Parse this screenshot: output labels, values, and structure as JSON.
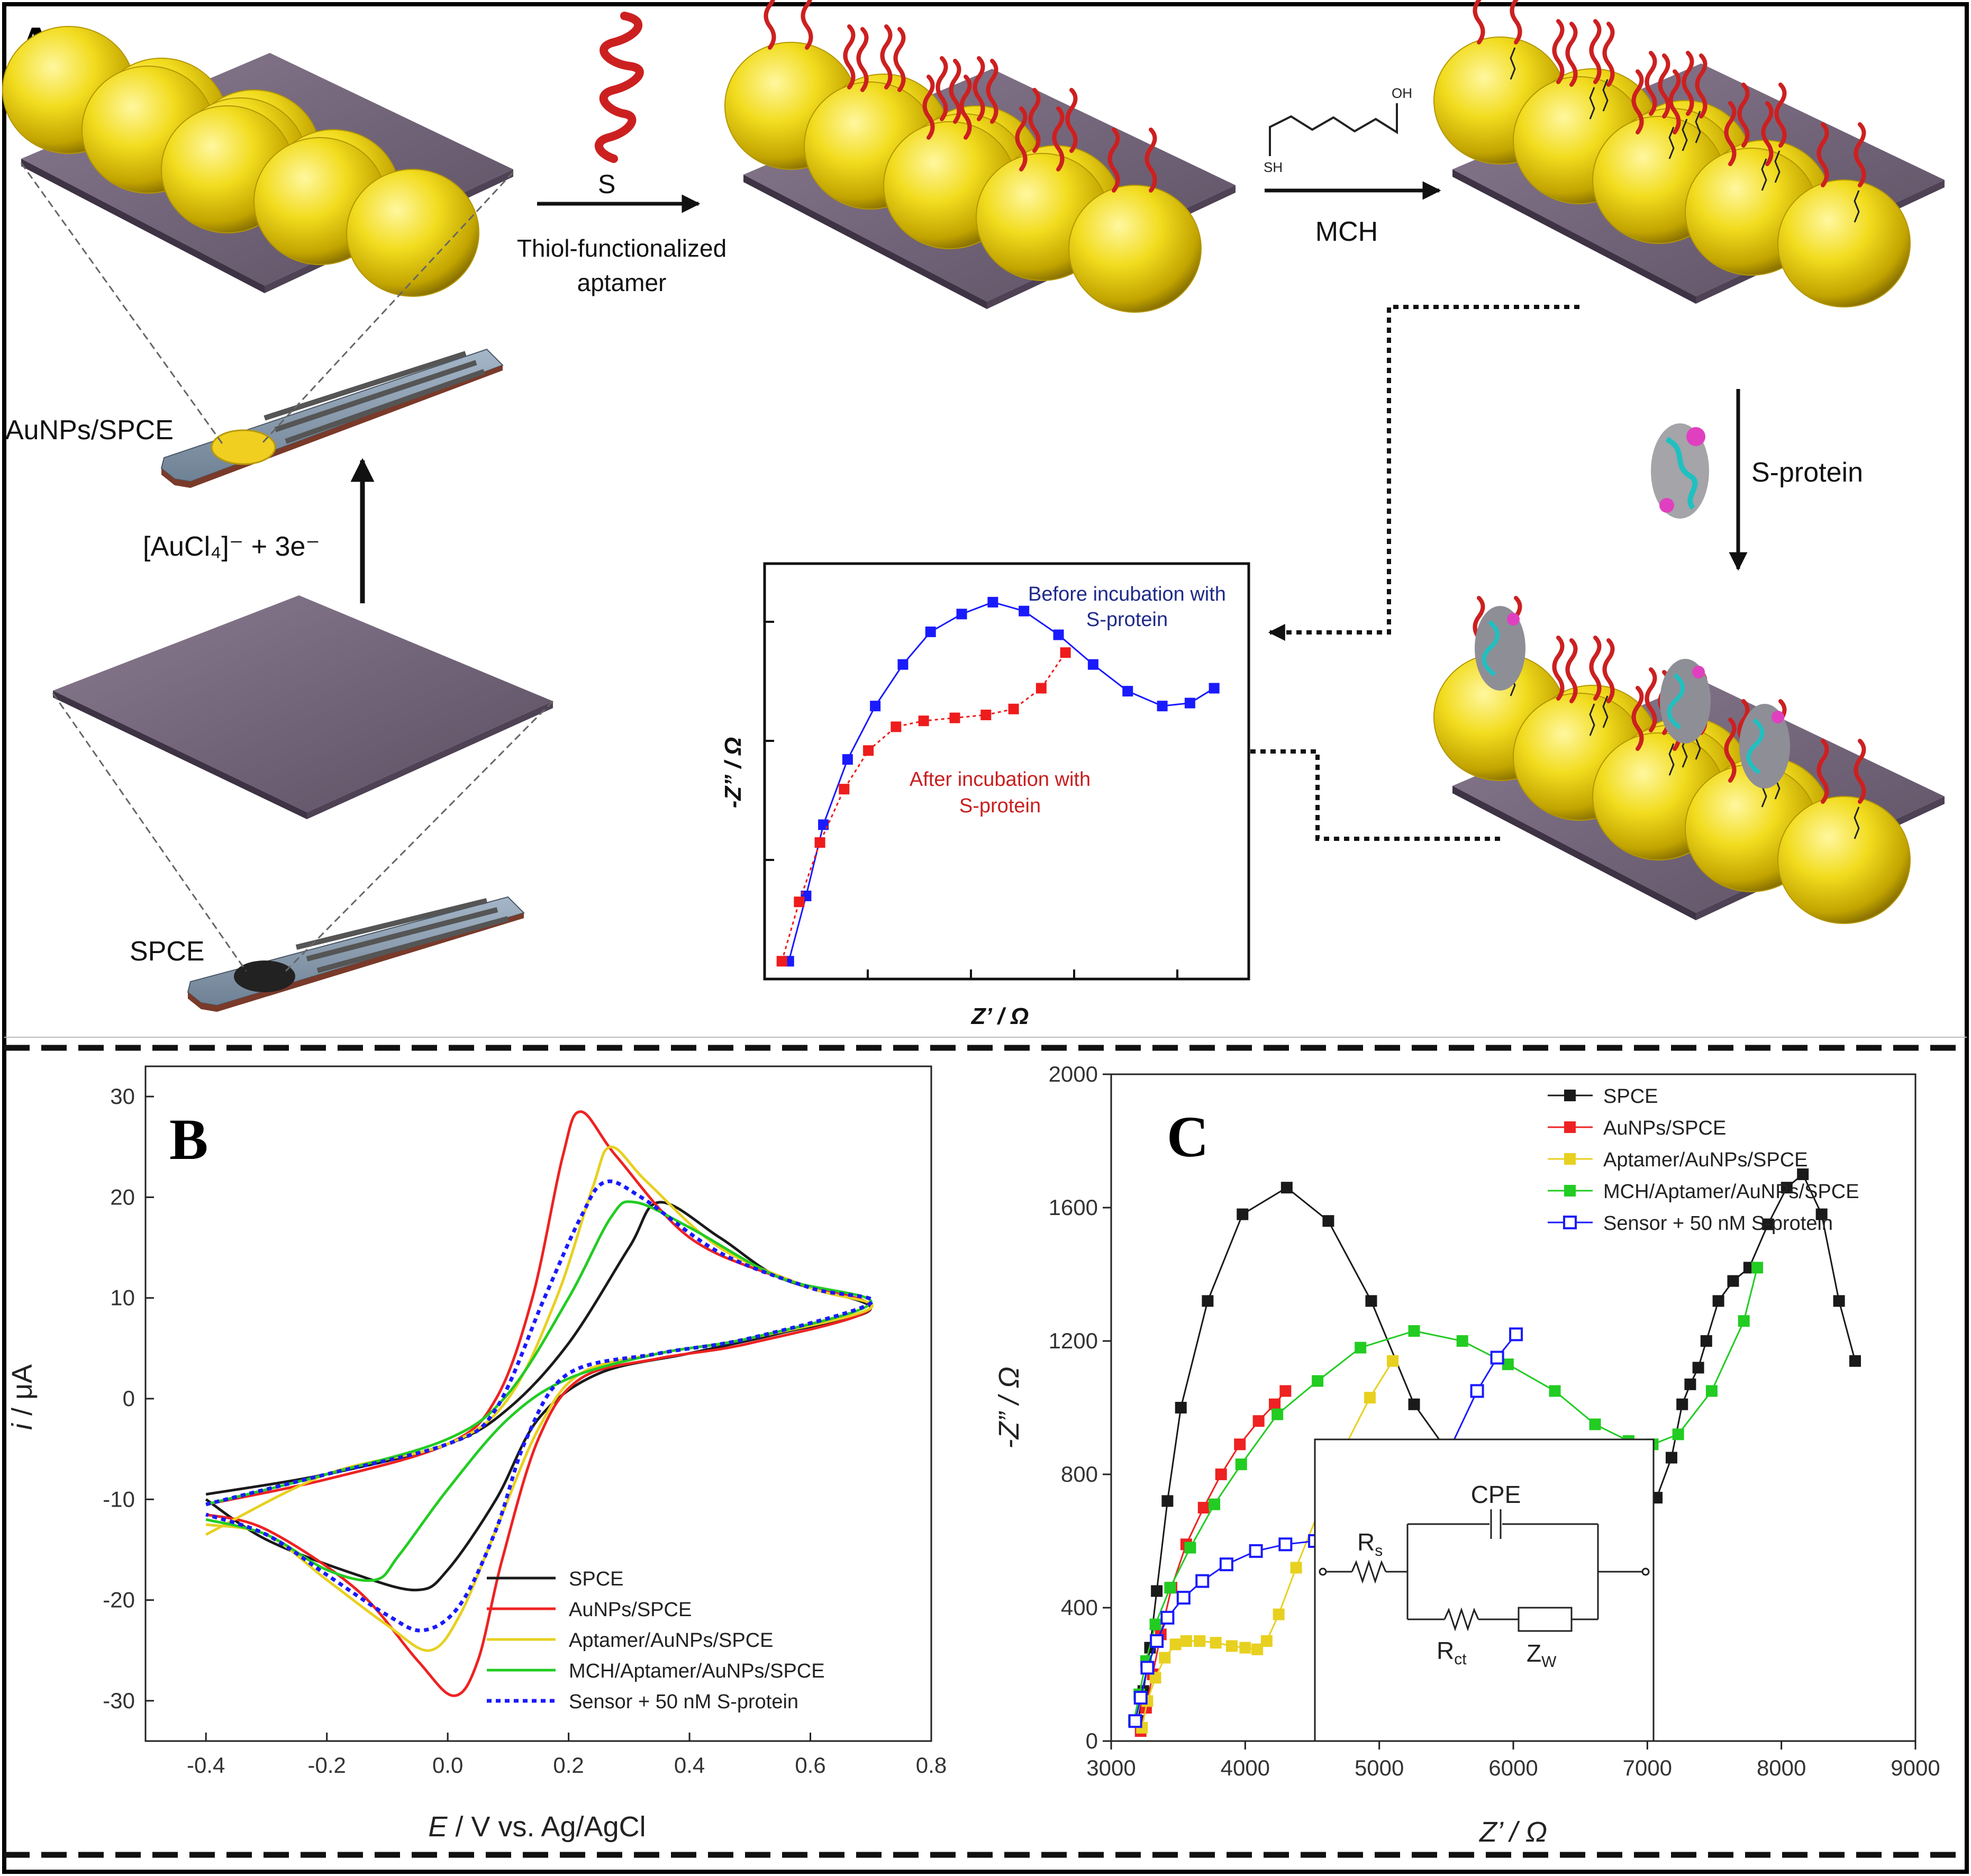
{
  "panelA": {
    "letter": "A",
    "labels": {
      "aunps_spce": "AuNPs/SPCE",
      "spce": "SPCE",
      "reduction": "[AuCl₄]⁻ + 3e⁻",
      "aptamer_line1": "Thiol-functionalized",
      "aptamer_line2": "aptamer",
      "thiol_s": "S",
      "mch": "MCH",
      "mch_sh": "SH",
      "mch_oh": "OH",
      "sprotein": "S-protein"
    },
    "inset": {
      "xlabel": "Z’ / Ω",
      "ylabel": "-Z” / Ω",
      "before_line1": "Before incubation with",
      "before_line2": "S-protein",
      "after_line1": "After incubation with",
      "after_line2": "S-protein",
      "colors": {
        "before": "#1a1aff",
        "after": "#ee1c1c",
        "before_text": "#1f2a8a",
        "after_text": "#c81e1e"
      },
      "chart_data": {
        "type": "line",
        "series": [
          {
            "name": "Before incubation with S-protein",
            "x": [
              0.7,
              1.2,
              1.7,
              2.4,
              3.2,
              4.0,
              4.8,
              5.7,
              6.6,
              7.5,
              8.5,
              9.5,
              10.5,
              11.5,
              12.3,
              13.0
            ],
            "y": [
              0.3,
              1.4,
              2.6,
              3.7,
              4.6,
              5.3,
              5.85,
              6.15,
              6.35,
              6.2,
              5.8,
              5.3,
              4.85,
              4.6,
              4.65,
              4.9
            ]
          },
          {
            "name": "After incubation with S-protein",
            "x": [
              0.5,
              1.0,
              1.6,
              2.3,
              3.0,
              3.8,
              4.6,
              5.5,
              6.4,
              7.2,
              8.0,
              8.7
            ],
            "y": [
              0.3,
              1.3,
              2.3,
              3.2,
              3.85,
              4.25,
              4.35,
              4.4,
              4.45,
              4.55,
              4.9,
              5.5
            ]
          }
        ]
      }
    }
  },
  "panelB": {
    "letter": "B",
    "chart_data": {
      "type": "line",
      "xlabel_italic": "E",
      "xlabel_rest": " / V vs. Ag/AgCl",
      "ylabel_italic": "i",
      "ylabel_rest": " / μA",
      "xlim": [
        -0.5,
        0.8
      ],
      "ylim": [
        -34,
        33
      ],
      "xticks": [
        -0.4,
        -0.2,
        0.0,
        0.2,
        0.4,
        0.6,
        0.8
      ],
      "xtick_labels": [
        "-0.4",
        "-0.2",
        "0.0",
        "0.2",
        "0.4",
        "0.6",
        "0.8"
      ],
      "yticks": [
        -30,
        -20,
        -10,
        0,
        10,
        20,
        30
      ],
      "ytick_labels": [
        "-30",
        "-20",
        "-10",
        "0",
        "10",
        "20",
        "30"
      ],
      "legend_position": "bottom-right",
      "series": [
        {
          "name": "SPCE",
          "color": "#1a1a1a",
          "dashed": false,
          "forward": [
            [
              -0.4,
              -9.5
            ],
            [
              -0.2,
              -7.5
            ],
            [
              0.0,
              -4.5
            ],
            [
              0.1,
              -1.0
            ],
            [
              0.2,
              5.5
            ],
            [
              0.3,
              15.0
            ],
            [
              0.35,
              19.5
            ],
            [
              0.45,
              16.0
            ],
            [
              0.55,
              12.0
            ],
            [
              0.7,
              9.0
            ]
          ],
          "reverse": [
            [
              0.7,
              8.5
            ],
            [
              0.55,
              6.5
            ],
            [
              0.4,
              4.5
            ],
            [
              0.25,
              2.5
            ],
            [
              0.15,
              -2.0
            ],
            [
              0.08,
              -10.0
            ],
            [
              0.0,
              -17.0
            ],
            [
              -0.05,
              -19.0
            ],
            [
              -0.15,
              -17.5
            ],
            [
              -0.3,
              -14.0
            ],
            [
              -0.4,
              -10.0
            ]
          ]
        },
        {
          "name": "AuNPs/SPCE",
          "color": "#ee2222",
          "dashed": false,
          "forward": [
            [
              -0.4,
              -10.5
            ],
            [
              -0.2,
              -8.0
            ],
            [
              0.0,
              -4.5
            ],
            [
              0.08,
              0.0
            ],
            [
              0.14,
              10.0
            ],
            [
              0.19,
              24.0
            ],
            [
              0.22,
              28.5
            ],
            [
              0.28,
              24.0
            ],
            [
              0.4,
              16.0
            ],
            [
              0.55,
              12.0
            ],
            [
              0.7,
              9.0
            ]
          ],
          "reverse": [
            [
              0.7,
              8.0
            ],
            [
              0.5,
              5.5
            ],
            [
              0.35,
              4.0
            ],
            [
              0.22,
              2.0
            ],
            [
              0.15,
              -4.0
            ],
            [
              0.09,
              -16.0
            ],
            [
              0.05,
              -26.0
            ],
            [
              0.01,
              -29.5
            ],
            [
              -0.05,
              -26.0
            ],
            [
              -0.15,
              -19.0
            ],
            [
              -0.3,
              -13.0
            ],
            [
              -0.4,
              -11.5
            ]
          ]
        },
        {
          "name": "Aptamer/AuNPs/SPCE",
          "color": "#e8d020",
          "dashed": false,
          "forward": [
            [
              -0.4,
              -13.5
            ],
            [
              -0.2,
              -7.5
            ],
            [
              0.0,
              -4.5
            ],
            [
              0.1,
              0.0
            ],
            [
              0.18,
              10.0
            ],
            [
              0.24,
              21.0
            ],
            [
              0.27,
              25.0
            ],
            [
              0.33,
              21.5
            ],
            [
              0.45,
              15.0
            ],
            [
              0.6,
              11.0
            ],
            [
              0.7,
              9.0
            ]
          ],
          "reverse": [
            [
              0.7,
              8.5
            ],
            [
              0.5,
              6.0
            ],
            [
              0.35,
              4.5
            ],
            [
              0.22,
              2.5
            ],
            [
              0.15,
              -3.0
            ],
            [
              0.08,
              -13.0
            ],
            [
              0.02,
              -21.5
            ],
            [
              -0.03,
              -25.0
            ],
            [
              -0.1,
              -22.5
            ],
            [
              -0.2,
              -18.0
            ],
            [
              -0.3,
              -13.5
            ],
            [
              -0.4,
              -12.5
            ]
          ]
        },
        {
          "name": "MCH/Aptamer/AuNPs/SPCE",
          "color": "#22cc22",
          "dashed": false,
          "forward": [
            [
              -0.4,
              -10.5
            ],
            [
              -0.2,
              -7.5
            ],
            [
              0.0,
              -4.0
            ],
            [
              0.1,
              0.5
            ],
            [
              0.2,
              10.0
            ],
            [
              0.27,
              18.0
            ],
            [
              0.31,
              19.5
            ],
            [
              0.4,
              17.0
            ],
            [
              0.55,
              12.0
            ],
            [
              0.7,
              9.5
            ]
          ],
          "reverse": [
            [
              0.7,
              8.5
            ],
            [
              0.5,
              6.0
            ],
            [
              0.35,
              4.5
            ],
            [
              0.2,
              2.0
            ],
            [
              0.1,
              -2.0
            ],
            [
              0.0,
              -9.0
            ],
            [
              -0.08,
              -15.5
            ],
            [
              -0.12,
              -18.0
            ],
            [
              -0.2,
              -17.0
            ],
            [
              -0.3,
              -13.5
            ],
            [
              -0.4,
              -12.0
            ]
          ]
        },
        {
          "name": "Sensor + 50 nM S-protein",
          "color": "#1a1aff",
          "dashed": true,
          "forward": [
            [
              -0.4,
              -10.5
            ],
            [
              -0.2,
              -7.5
            ],
            [
              0.0,
              -4.5
            ],
            [
              0.08,
              -1.0
            ],
            [
              0.16,
              10.0
            ],
            [
              0.22,
              18.0
            ],
            [
              0.26,
              21.5
            ],
            [
              0.32,
              20.0
            ],
            [
              0.45,
              14.5
            ],
            [
              0.6,
              11.0
            ],
            [
              0.7,
              9.5
            ]
          ],
          "reverse": [
            [
              0.7,
              9.0
            ],
            [
              0.5,
              6.0
            ],
            [
              0.35,
              4.5
            ],
            [
              0.2,
              2.5
            ],
            [
              0.13,
              -4.0
            ],
            [
              0.08,
              -13.0
            ],
            [
              0.02,
              -20.5
            ],
            [
              -0.04,
              -23.0
            ],
            [
              -0.1,
              -21.5
            ],
            [
              -0.2,
              -17.5
            ],
            [
              -0.3,
              -13.5
            ],
            [
              -0.4,
              -11.5
            ]
          ]
        }
      ]
    }
  },
  "panelC": {
    "letter": "C",
    "chart_data": {
      "type": "scatter",
      "xlabel": "Z’ / Ω",
      "ylabel": "-Z” / Ω",
      "xlim": [
        3000,
        9000
      ],
      "ylim": [
        0,
        2000
      ],
      "xticks": [
        3000,
        4000,
        5000,
        6000,
        7000,
        8000,
        9000
      ],
      "xtick_labels": [
        "3000",
        "4000",
        "5000",
        "6000",
        "7000",
        "8000",
        "9000"
      ],
      "yticks": [
        0,
        400,
        800,
        1200,
        1600,
        2000
      ],
      "ytick_labels": [
        "0",
        "400",
        "800",
        "1200",
        "1600",
        "2000"
      ],
      "legend_position": "top-left",
      "series": [
        {
          "name": "SPCE",
          "color": "#1a1a1a",
          "marker": "filled",
          "x": [
            3200,
            3240,
            3290,
            3340,
            3420,
            3520,
            3720,
            3980,
            4310,
            4620,
            4940,
            5260,
            5580,
            5900,
            6200,
            6430,
            6650,
            6820,
            6950,
            7070,
            7180,
            7260,
            7320,
            7380,
            7440,
            7530,
            7640,
            7760,
            7900,
            8040,
            8160,
            8300,
            8430,
            8550
          ],
          "y": [
            60,
            150,
            280,
            450,
            720,
            1000,
            1320,
            1580,
            1660,
            1560,
            1320,
            1010,
            830,
            720,
            650,
            620,
            610,
            630,
            660,
            730,
            850,
            1010,
            1070,
            1120,
            1200,
            1320,
            1380,
            1420,
            1550,
            1660,
            1700,
            1580,
            1320,
            1140
          ]
        },
        {
          "name": "AuNPs/SPCE",
          "color": "#ee2222",
          "marker": "filled",
          "x": [
            3220,
            3260,
            3310,
            3370,
            3450,
            3560,
            3690,
            3820,
            3960,
            4100,
            4220,
            4300
          ],
          "y": [
            30,
            100,
            200,
            320,
            460,
            590,
            700,
            800,
            890,
            960,
            1010,
            1050
          ]
        },
        {
          "name": "Aptamer/AuNPs/SPCE",
          "color": "#e8d020",
          "marker": "filled",
          "x": [
            3230,
            3270,
            3330,
            3400,
            3480,
            3560,
            3660,
            3780,
            3900,
            4000,
            4090,
            4160,
            4250,
            4380,
            4560,
            4740,
            4930,
            5100
          ],
          "y": [
            40,
            120,
            190,
            250,
            290,
            300,
            300,
            295,
            285,
            280,
            275,
            300,
            380,
            520,
            700,
            880,
            1030,
            1140
          ]
        },
        {
          "name": "MCH/Aptamer/AuNPs/SPCE",
          "color": "#22cc22",
          "marker": "filled",
          "x": [
            3170,
            3210,
            3260,
            3330,
            3440,
            3590,
            3770,
            3970,
            4240,
            4540,
            4860,
            5260,
            5620,
            5960,
            6310,
            6610,
            6860,
            7040,
            7230,
            7480,
            7720,
            7820
          ],
          "y": [
            60,
            140,
            240,
            350,
            460,
            580,
            710,
            830,
            980,
            1080,
            1180,
            1230,
            1200,
            1130,
            1050,
            950,
            900,
            890,
            920,
            1050,
            1260,
            1420
          ]
        },
        {
          "name": "Sensor + 50 nM S-protein",
          "color": "#1a1aff",
          "marker": "hollow",
          "x": [
            3180,
            3220,
            3270,
            3340,
            3420,
            3540,
            3680,
            3860,
            4080,
            4300,
            4520,
            4720,
            4930,
            5130,
            5330,
            5530,
            5730,
            5880,
            6020
          ],
          "y": [
            60,
            130,
            220,
            300,
            370,
            430,
            480,
            530,
            570,
            590,
            600,
            600,
            610,
            630,
            720,
            880,
            1050,
            1150,
            1220
          ]
        }
      ]
    },
    "circuit": {
      "rs": "R",
      "rs_sub": "s",
      "cpe": "CPE",
      "rct": "R",
      "rct_sub": "ct",
      "zw": "Z",
      "zw_sub": "W"
    }
  }
}
